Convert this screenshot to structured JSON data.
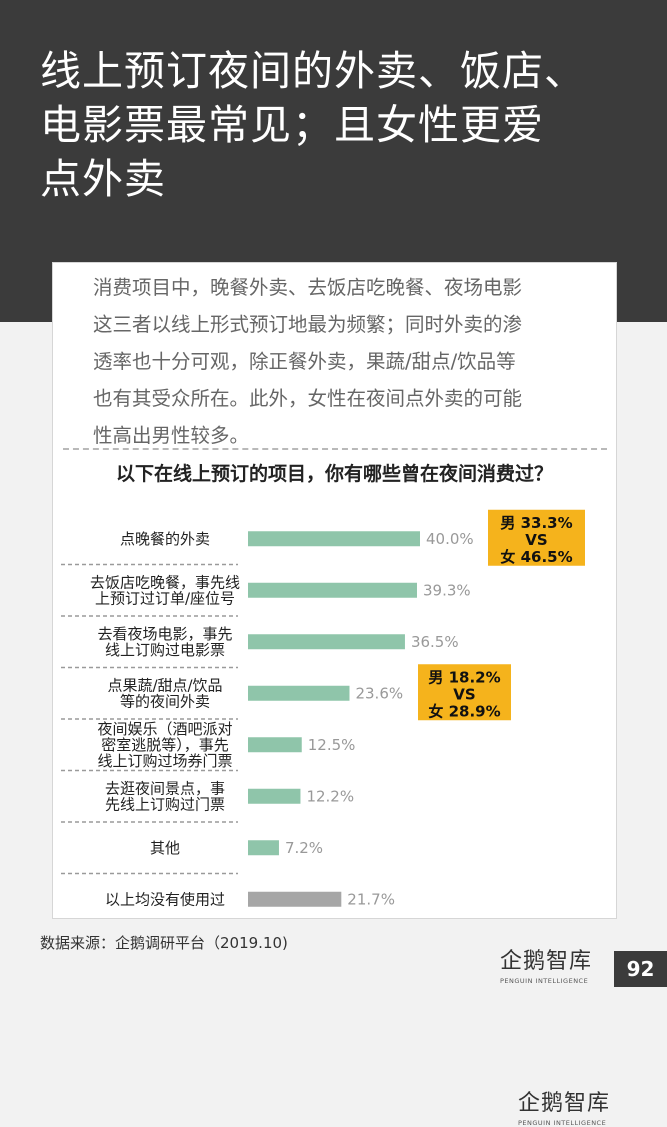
{
  "header": {
    "title_lines": [
      "线上预订夜间的外卖、饭店、",
      "电影票最常见；且女性更爱",
      "点外卖"
    ]
  },
  "card": {
    "description_lines": [
      "消费项目中，晚餐外卖、去饭店吃晚餐、夜场电影",
      "这三者以线上形式预订地最为频繁；同时外卖的渗",
      "透率也十分可观，除正餐外卖，果蔬/甜点/饮品等",
      "也有其受众所在。此外，女性在夜间点外卖的可能",
      "性高出男性较多。"
    ],
    "question": "以下在线上预订的项目，你有哪些曾在夜间消费过？"
  },
  "chart_data": {
    "type": "bar",
    "orientation": "horizontal",
    "categories": [
      [
        "点晚餐的外卖"
      ],
      [
        "去饭店吃晚餐，事先线",
        "上预订过订单/座位号"
      ],
      [
        "去看夜场电影，事先",
        "线上订购过电影票"
      ],
      [
        "点果蔬/甜点/饮品",
        "等的夜间外卖"
      ],
      [
        "夜间娱乐（酒吧派对",
        "密室逃脱等），事先",
        "线上订购过场券门票"
      ],
      [
        "去逛夜间景点，事",
        "先线上订购过门票"
      ],
      [
        "其他"
      ],
      [
        "以上均没有使用过"
      ]
    ],
    "values": [
      40.0,
      39.3,
      36.5,
      23.6,
      12.5,
      12.2,
      7.2,
      21.7
    ],
    "value_labels": [
      "40.0%",
      "39.3%",
      "36.5%",
      "23.6%",
      "12.5%",
      "12.2%",
      "7.2%",
      "21.7%"
    ],
    "bar_colors": [
      "#8fc5aa",
      "#8fc5aa",
      "#8fc5aa",
      "#8fc5aa",
      "#8fc5aa",
      "#8fc5aa",
      "#8fc5aa",
      "#a6a6a6"
    ],
    "xlim": [
      0,
      100
    ],
    "grid": false,
    "annotations": [
      {
        "row": 0,
        "lines": [
          "男 33.3%",
          "VS",
          "女 46.5%"
        ],
        "color": "#f5b31c"
      },
      {
        "row": 3,
        "lines": [
          "男 18.2%",
          "VS",
          "女 28.9%"
        ],
        "color": "#f5b31c"
      }
    ]
  },
  "branding": {
    "logo_main": "企鹅智库",
    "logo_sub": "PENGUIN INTELLIGENCE"
  },
  "footer": {
    "source": "数据来源：企鹅调研平台（2019.10)",
    "page_number": "92"
  }
}
